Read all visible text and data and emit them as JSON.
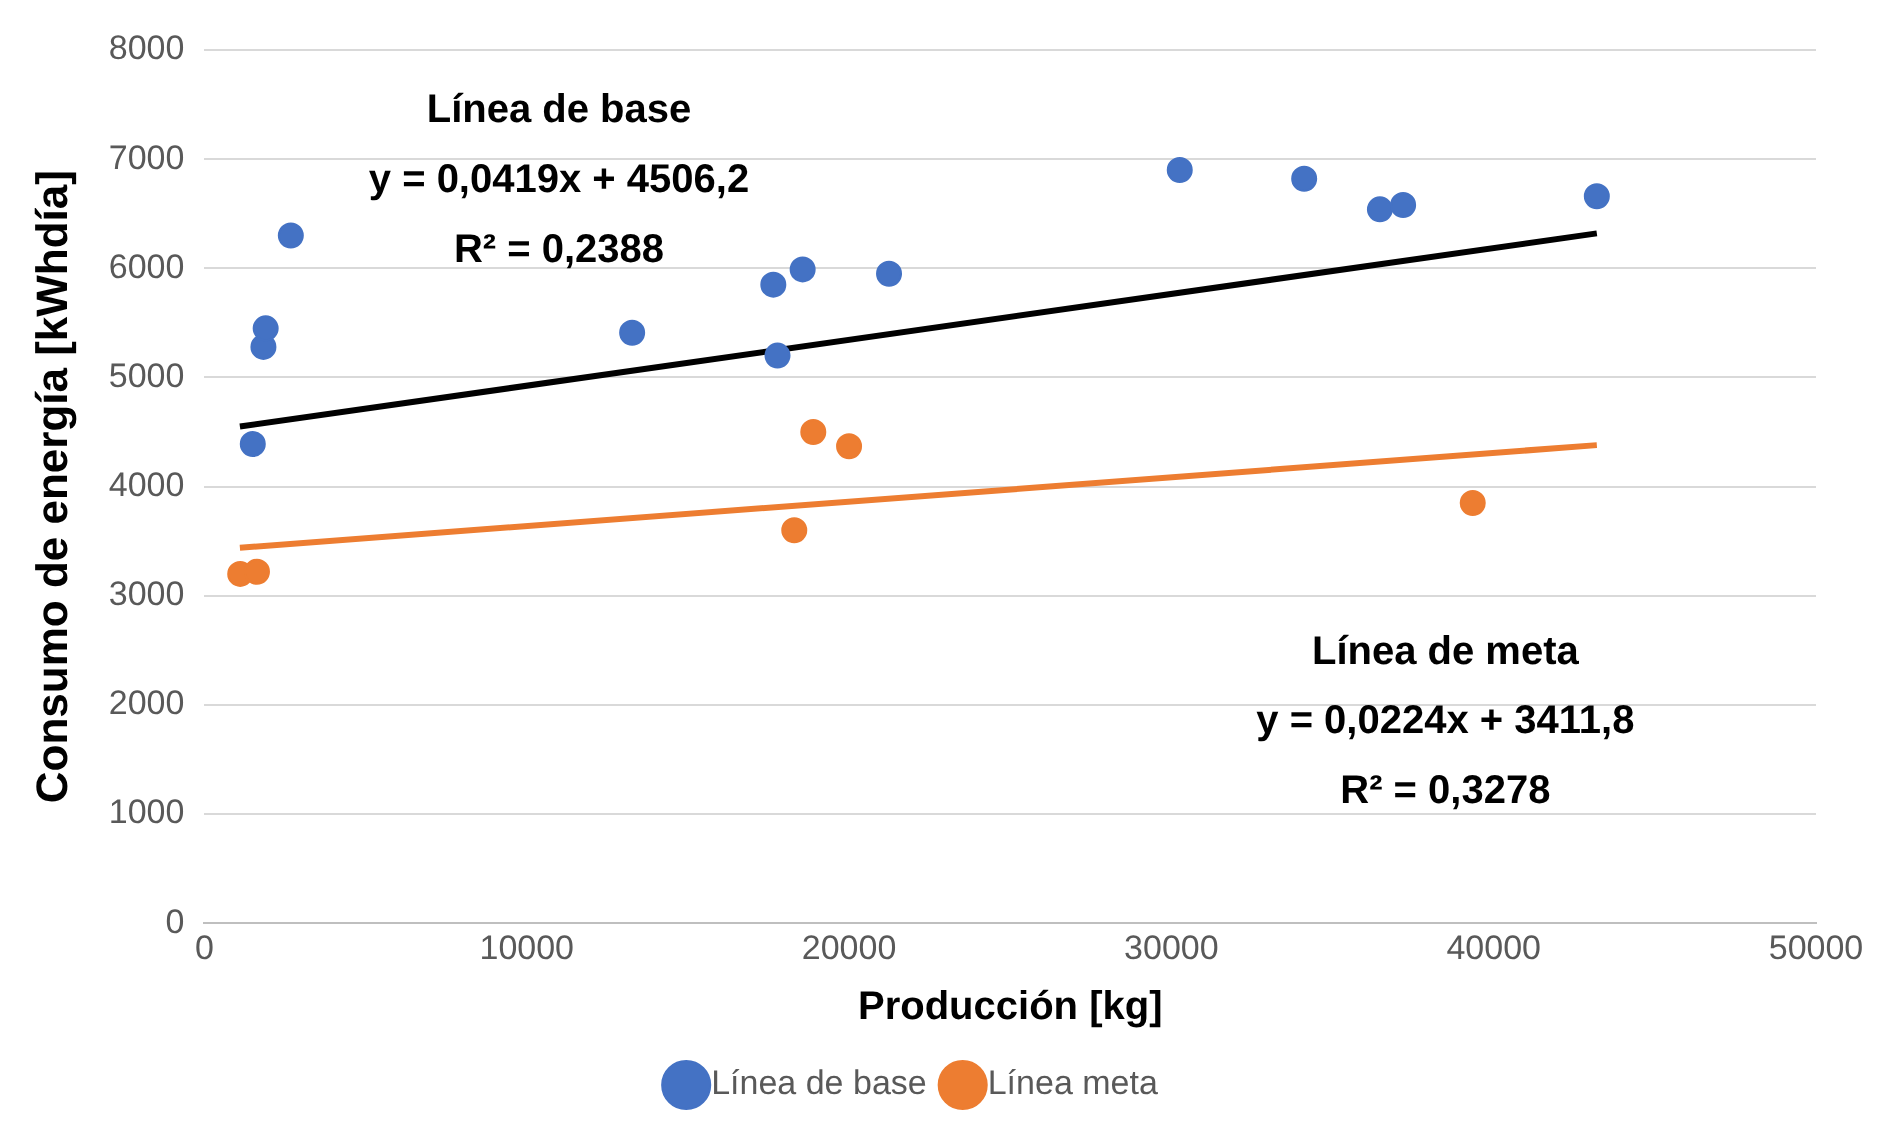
{
  "chart_data": {
    "type": "scatter",
    "xlabel": "Producción [kg]",
    "ylabel": "Consumo de energía [kWhdía]",
    "xlim": [
      0,
      50000
    ],
    "xticks": [
      0,
      10000,
      20000,
      30000,
      40000,
      50000
    ],
    "ylim": [
      0,
      8000
    ],
    "yticks": [
      0,
      1000,
      2000,
      3000,
      4000,
      5000,
      6000,
      7000,
      8000
    ],
    "grid": "y",
    "legend": "bottom",
    "marker": "circle",
    "series": [
      {
        "name": "Línea de base",
        "color": "#4472c4",
        "x": [
          1500,
          1830,
          1900,
          2680,
          13270,
          17650,
          17780,
          18560,
          21240,
          30260,
          34120,
          36470,
          37190,
          43200
        ],
        "values": [
          4390,
          5280,
          5450,
          6300,
          5410,
          5850,
          5200,
          5990,
          5950,
          6900,
          6820,
          6540,
          6580,
          6660
        ]
      },
      {
        "name": "Línea meta",
        "color": "#ed7d31",
        "x": [
          1110,
          1630,
          18300,
          18890,
          20000,
          39350
        ],
        "values": [
          3200,
          3220,
          3600,
          4500,
          4370,
          3850
        ]
      },
      {
        "type": "line",
        "marker": "none",
        "color": "#000000",
        "x": [
          1100,
          43200
        ],
        "values": [
          4550,
          6320
        ]
      },
      {
        "type": "line",
        "marker": "none",
        "color": "#ed7d31",
        "x": [
          1100,
          43200
        ],
        "values": [
          3440,
          4380
        ]
      }
    ],
    "annotations": [
      "Línea de base",
      "y = 0,0419x + 4506,2",
      "R² = 0,2388",
      "Línea de meta",
      "y = 0,0224x + 3411,8",
      "R² = 0,3278"
    ]
  }
}
